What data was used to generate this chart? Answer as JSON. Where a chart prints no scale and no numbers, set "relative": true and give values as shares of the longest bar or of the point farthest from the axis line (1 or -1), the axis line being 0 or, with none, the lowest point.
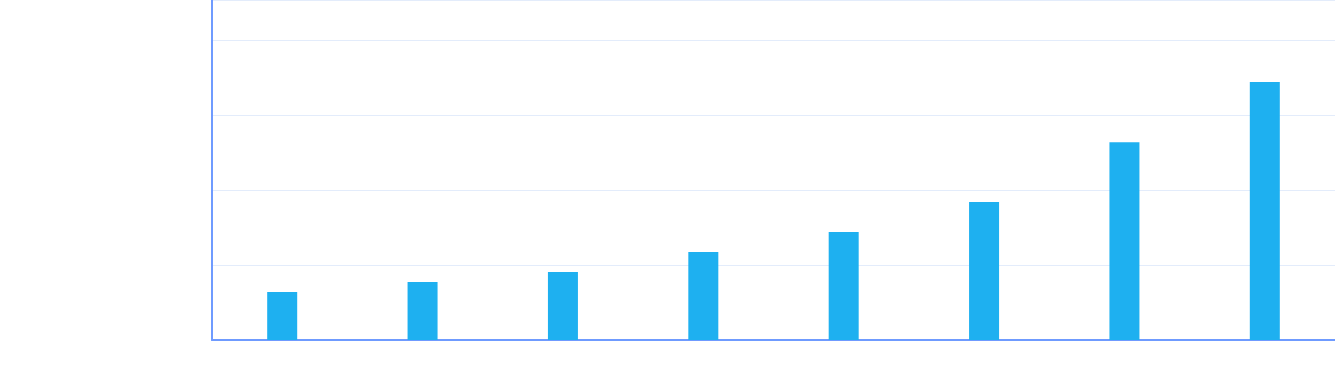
{
  "chart_data": {
    "type": "bar",
    "relative": true,
    "categories": [
      null,
      null,
      null,
      null,
      null,
      null,
      null,
      null
    ],
    "values": [
      0.186,
      0.225,
      0.264,
      0.341,
      0.419,
      0.535,
      0.767,
      1
    ],
    "color": "#1eb0f0",
    "grid": "y"
  }
}
